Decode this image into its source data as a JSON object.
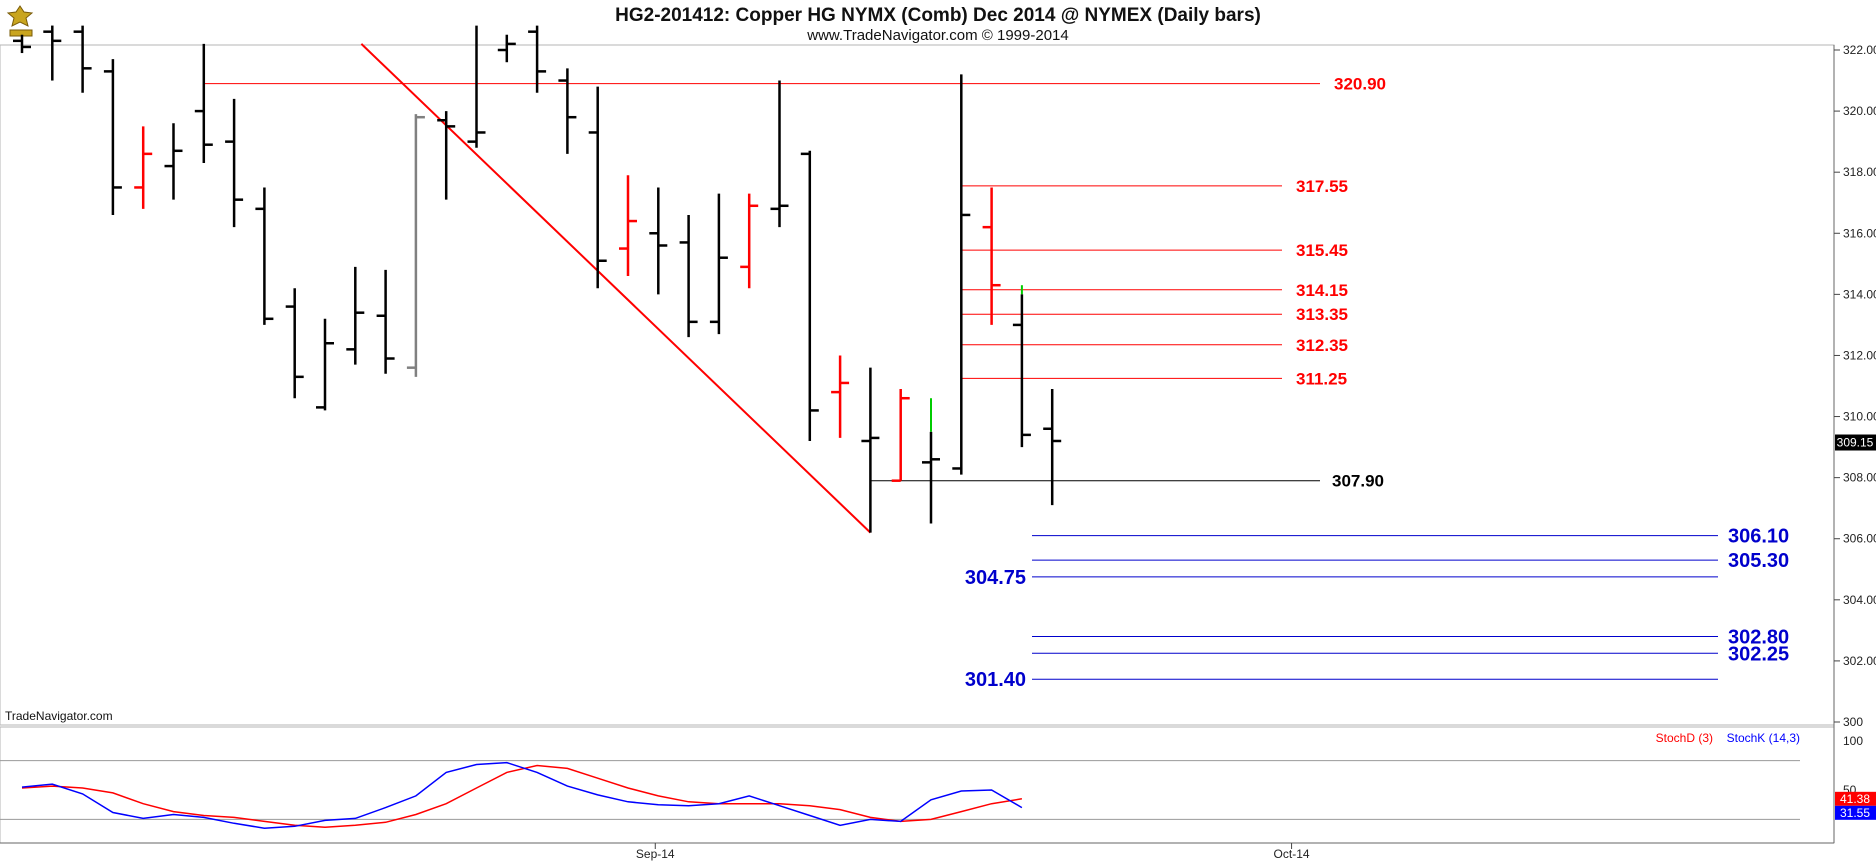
{
  "header": {
    "title": "HG2-201412:  Copper HG NYMX (Comb) Dec 2014 @ NYMEX  (Daily bars)",
    "subtitle": "www.TradeNavigator.com © 1999-2014"
  },
  "watermark": "TradeNavigator.com",
  "colors": {
    "up_bar": "#ff0000",
    "down_bar": "#000000",
    "neutral_bar": "#808080",
    "green_tick": "#00cc00",
    "resistance": "#ff0000",
    "support": "#0000cc",
    "stoch_d": "#ff0000",
    "stoch_k": "#0000ff",
    "gridline": "#9a9a9a"
  },
  "chart_data": [
    {
      "type": "ohlc",
      "title": "HG2-201412:  Copper HG NYMX (Comb) Dec 2014 @ NYMEX  (Daily bars)",
      "ylim": [
        300.5,
        322.2
      ],
      "yticks": [
        "322.00",
        "320.00",
        "318.00",
        "316.00",
        "314.00",
        "312.00",
        "310.00",
        "308.00",
        "306.00",
        "304.00",
        "302.00",
        "300"
      ],
      "ytick_values": [
        322,
        320,
        318,
        316,
        314,
        312,
        310,
        308,
        306,
        304,
        302,
        300
      ],
      "xticks": [
        {
          "label": "Sep-14",
          "index": 20.9
        },
        {
          "label": "Oct-14",
          "index": 41.9
        }
      ],
      "last_price": "309.15",
      "bars": [
        {
          "o": 322.3,
          "h": 322.5,
          "l": 321.9,
          "c": 322.1,
          "color": "down"
        },
        {
          "o": 322.6,
          "h": 323.0,
          "l": 321.0,
          "c": 322.3,
          "color": "down"
        },
        {
          "o": 322.6,
          "h": 322.8,
          "l": 320.6,
          "c": 321.4,
          "color": "down"
        },
        {
          "o": 321.3,
          "h": 321.7,
          "l": 316.6,
          "c": 317.5,
          "color": "down"
        },
        {
          "o": 317.5,
          "h": 319.5,
          "l": 316.8,
          "c": 318.6,
          "color": "up"
        },
        {
          "o": 318.2,
          "h": 319.6,
          "l": 317.1,
          "c": 318.7,
          "color": "down"
        },
        {
          "o": 320.0,
          "h": 322.2,
          "l": 318.3,
          "c": 318.9,
          "color": "down"
        },
        {
          "o": 319.0,
          "h": 320.4,
          "l": 316.2,
          "c": 317.1,
          "color": "down"
        },
        {
          "o": 316.8,
          "h": 317.5,
          "l": 313.0,
          "c": 313.2,
          "color": "down"
        },
        {
          "o": 313.6,
          "h": 314.2,
          "l": 310.6,
          "c": 311.3,
          "color": "down"
        },
        {
          "o": 310.3,
          "h": 313.2,
          "l": 310.2,
          "c": 312.4,
          "color": "down"
        },
        {
          "o": 312.2,
          "h": 314.9,
          "l": 311.7,
          "c": 313.4,
          "color": "down"
        },
        {
          "o": 313.3,
          "h": 314.8,
          "l": 311.4,
          "c": 311.9,
          "color": "down"
        },
        {
          "o": 311.6,
          "h": 319.9,
          "l": 311.3,
          "c": 319.8,
          "color": "neutral"
        },
        {
          "o": 319.7,
          "h": 320.0,
          "l": 317.1,
          "c": 319.5,
          "color": "down"
        },
        {
          "o": 319.0,
          "h": 323.0,
          "l": 318.8,
          "c": 319.3,
          "color": "down"
        },
        {
          "o": 322.0,
          "h": 322.5,
          "l": 321.6,
          "c": 322.2,
          "color": "down"
        },
        {
          "o": 322.6,
          "h": 322.9,
          "l": 320.6,
          "c": 321.3,
          "color": "down"
        },
        {
          "o": 321.0,
          "h": 321.4,
          "l": 318.6,
          "c": 319.8,
          "color": "down"
        },
        {
          "o": 319.3,
          "h": 320.8,
          "l": 314.2,
          "c": 315.1,
          "color": "down"
        },
        {
          "o": 315.5,
          "h": 317.9,
          "l": 314.6,
          "c": 316.4,
          "color": "up"
        },
        {
          "o": 316.0,
          "h": 317.5,
          "l": 314.0,
          "c": 315.6,
          "color": "down"
        },
        {
          "o": 315.7,
          "h": 316.6,
          "l": 312.6,
          "c": 313.1,
          "color": "down"
        },
        {
          "o": 313.1,
          "h": 317.3,
          "l": 312.7,
          "c": 315.2,
          "color": "down"
        },
        {
          "o": 314.9,
          "h": 317.3,
          "l": 314.2,
          "c": 316.9,
          "color": "up"
        },
        {
          "o": 316.8,
          "h": 321.0,
          "l": 316.2,
          "c": 316.9,
          "color": "down"
        },
        {
          "o": 318.6,
          "h": 318.7,
          "l": 309.2,
          "c": 310.2,
          "color": "down"
        },
        {
          "o": 310.8,
          "h": 312.0,
          "l": 309.3,
          "c": 311.1,
          "color": "up"
        },
        {
          "o": 309.2,
          "h": 311.6,
          "l": 306.2,
          "c": 309.3,
          "color": "down"
        },
        {
          "o": 307.9,
          "h": 310.9,
          "l": 307.9,
          "c": 310.6,
          "color": "up"
        },
        {
          "o": 308.5,
          "h": 310.6,
          "l": 306.5,
          "c": 308.6,
          "color": "down",
          "tick_green_from": 309.5
        },
        {
          "o": 308.3,
          "h": 321.2,
          "l": 308.1,
          "c": 316.6,
          "color": "down"
        },
        {
          "o": 316.2,
          "h": 317.5,
          "l": 313.0,
          "c": 314.3,
          "color": "up"
        },
        {
          "o": 313.0,
          "h": 314.3,
          "l": 309.0,
          "c": 309.4,
          "color": "down",
          "tick_green_from": 314.0
        },
        {
          "o": 309.6,
          "h": 310.9,
          "l": 307.1,
          "c": 309.2,
          "color": "down"
        }
      ],
      "trendline": {
        "from": {
          "index": 11.2,
          "y": 322.2
        },
        "to": {
          "index": 28.0,
          "y": 306.2
        }
      },
      "resistance_levels": [
        {
          "value": 320.9,
          "label": "320.90",
          "from_index": 6.0
        },
        {
          "value": 317.55,
          "label": "317.55",
          "from_index": 31.0
        },
        {
          "value": 315.45,
          "label": "315.45",
          "from_index": 31.0
        },
        {
          "value": 314.15,
          "label": "314.15",
          "from_index": 31.0
        },
        {
          "value": 313.35,
          "label": "313.35",
          "from_index": 31.0
        },
        {
          "value": 312.35,
          "label": "312.35",
          "from_index": 31.0
        },
        {
          "value": 311.25,
          "label": "311.25",
          "from_index": 31.0
        }
      ],
      "pivot_level": {
        "value": 307.9,
        "label": "307.90",
        "from_index": 28.0
      },
      "support_levels": [
        {
          "value": 306.1,
          "label": "306.10",
          "side": "right"
        },
        {
          "value": 305.3,
          "label": "305.30",
          "side": "right"
        },
        {
          "value": 304.75,
          "label": "304.75",
          "side": "left"
        },
        {
          "value": 302.8,
          "label": "302.80",
          "side": "right"
        },
        {
          "value": 302.25,
          "label": "302.25",
          "side": "right"
        },
        {
          "value": 301.4,
          "label": "301.40",
          "side": "left"
        }
      ]
    },
    {
      "type": "line",
      "ylim": [
        0,
        100
      ],
      "ytick_labels": [
        "100",
        "50"
      ],
      "ytick_values": [
        100,
        50
      ],
      "band_levels": [
        80,
        20
      ],
      "legend": [
        {
          "name": "StochD (3)",
          "color": "#ff0000"
        },
        {
          "name": "StochK (14,3)",
          "color": "#0000ff"
        }
      ],
      "last_values": {
        "stoch_d": "41.38",
        "stoch_k": "31.55"
      },
      "series": [
        {
          "name": "StochD (3)",
          "color": "#ff0000",
          "values": [
            52,
            54,
            52,
            47,
            36,
            28,
            24,
            22,
            18,
            14,
            12,
            14,
            17,
            25,
            36,
            52,
            68,
            75,
            72,
            62,
            52,
            44,
            38,
            36,
            36,
            36,
            34,
            30,
            22,
            18,
            20,
            28,
            36,
            41
          ]
        },
        {
          "name": "StochK (14,3)",
          "color": "#0000ff",
          "values": [
            53,
            56,
            46,
            27,
            21,
            25,
            22,
            16,
            11,
            13,
            19,
            21,
            32,
            44,
            68,
            76,
            78,
            68,
            54,
            45,
            38,
            35,
            34,
            36,
            44,
            34,
            24,
            14,
            20,
            18,
            40,
            49,
            50,
            32
          ]
        }
      ]
    }
  ]
}
